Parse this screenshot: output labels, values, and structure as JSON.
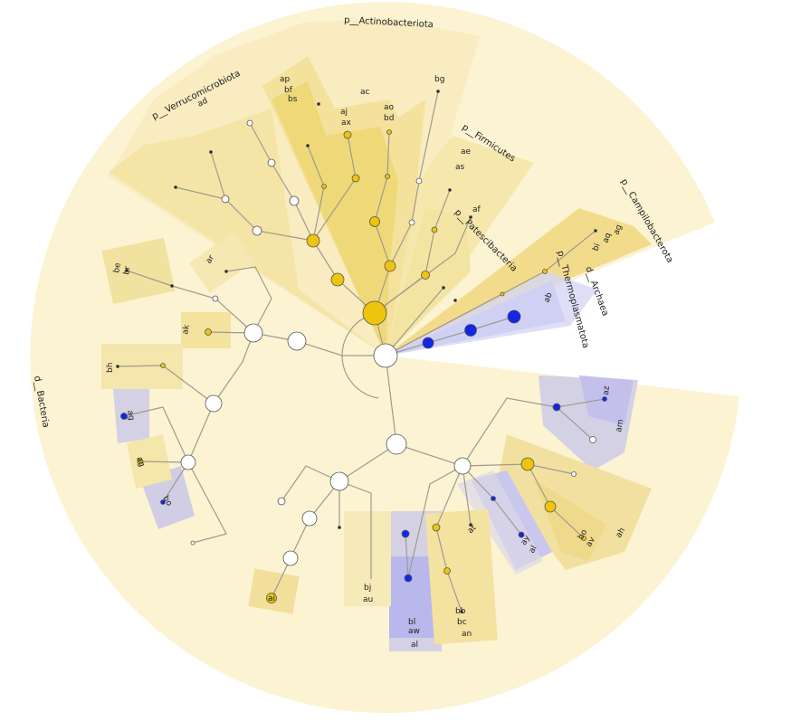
{
  "colors": {
    "outer_yellow": "#fcf3d2",
    "mid_yellow": "#f7e9b4",
    "deep_yellow": "#efd97a",
    "node_yellow": "#eec40c",
    "node_blue": "#1326e6",
    "blue_band": "#b6b8f0",
    "grey_blue_band": "#d4d1e5",
    "node_white": "#ffffff",
    "branch": "#a09a8e"
  },
  "clade_labels": {
    "bacteria": "d__Bacteria",
    "actinobacteriota": "p__Actinobacteriota",
    "verrucomicrobiota": "p__Verrucomicrobiota",
    "firmicutes": "p__Firmicutes",
    "patescibacteria": "p__Patescibacteria",
    "campilobacterota": "p__Campilobacterota",
    "thermoplasmatota": "p__Thermoplasmatota",
    "archaea": "d__Archaea"
  },
  "leaf_labels": {
    "ad": "ad",
    "ap": "ap",
    "bf": "bf",
    "bs": "bs",
    "ac": "ac",
    "aj": "aj",
    "ax": "ax",
    "ao": "ao",
    "bd": "bd",
    "bg": "bg",
    "ae": "ae",
    "as": "as",
    "af": "af",
    "ag": "ag",
    "bi": "bi",
    "aq": "aq",
    "ab": "ab",
    "ar": "ar",
    "be": "be",
    "br": "br",
    "ak": "ak",
    "bh": "bh",
    "az": "az",
    "am": "am",
    "ah": "ah",
    "av": "av",
    "bo": "bo",
    "ay": "ay",
    "al": "al",
    "at": "at",
    "an": "an",
    "bc": "bc",
    "bb": "bb",
    "aw": "aw",
    "bl": "bl",
    "ai": "ai",
    "au": "au",
    "bj": "bj"
  }
}
